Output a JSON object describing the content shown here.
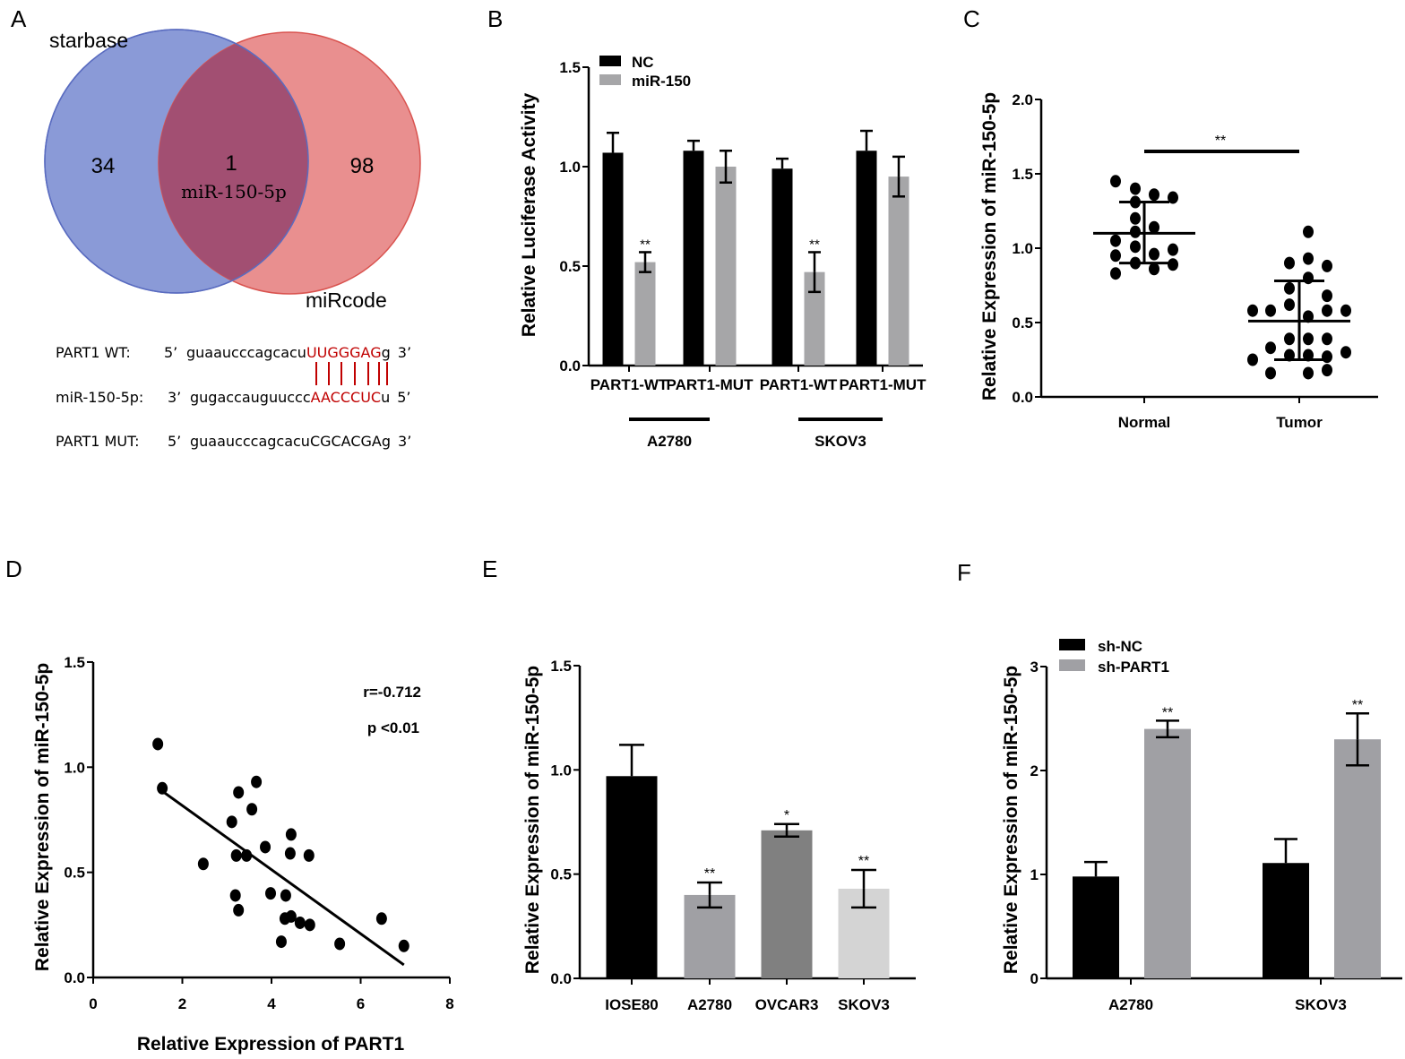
{
  "panels": {
    "A": "A",
    "B": "B",
    "C": "C",
    "D": "D",
    "E": "E",
    "F": "F"
  },
  "venn": {
    "left_label": "starbase",
    "right_label": "miRcode",
    "left_only": "34",
    "overlap": "1",
    "overlap_name": "miR-150-5p",
    "right_only": "98",
    "colors": {
      "left": "#7688d0",
      "right": "#e57b7b",
      "overlap": "#a24f72"
    }
  },
  "sequences": [
    {
      "label": "PART1 WT:",
      "end5": "5’",
      "plain": "guaaucccagcacu",
      "highlight": "UUGGGAG",
      "tail": "g",
      "end3": "3’"
    },
    {
      "label": "miR-150-5p:",
      "end5": "3’",
      "plain": "gugaccauguuccc",
      "highlight": "AACCCUC",
      "tail": "u",
      "end3": "5’"
    },
    {
      "label": "PART1 MUT:",
      "end5": "5’",
      "plain": "guaaucccagcacuCGCACGAg",
      "highlight": "",
      "tail": "",
      "end3": "3’"
    }
  ],
  "chart_data": [
    {
      "id": "B",
      "type": "bar",
      "ylabel": "Relative Luciferase Activity",
      "ylim": [
        0,
        1.5
      ],
      "yticks": [
        "0.0",
        "0.5",
        "1.0",
        "1.5"
      ],
      "categories": [
        "PART1-WT",
        "PART1-MUT",
        "PART1-WT",
        "PART1-MUT"
      ],
      "groups": [
        {
          "label": "A2780",
          "span": [
            0,
            1
          ]
        },
        {
          "label": "SKOV3",
          "span": [
            2,
            3
          ]
        }
      ],
      "series": [
        {
          "name": "NC",
          "color": "#000000",
          "values": [
            1.07,
            1.08,
            0.99,
            1.08
          ],
          "err": [
            0.1,
            0.05,
            0.05,
            0.1
          ]
        },
        {
          "name": "miR-150",
          "color": "#a6a6a8",
          "values": [
            0.52,
            1.0,
            0.47,
            0.95
          ],
          "err": [
            0.05,
            0.08,
            0.1,
            0.1
          ]
        }
      ],
      "annotations": [
        {
          "series": 1,
          "index": 0,
          "text": "**"
        },
        {
          "series": 1,
          "index": 2,
          "text": "**"
        }
      ],
      "legend": "top-left"
    },
    {
      "id": "C",
      "type": "scatter",
      "ylabel": "Relative Expression of miR-150-5p",
      "ylim": [
        0,
        2.0
      ],
      "yticks": [
        "0.0",
        "0.5",
        "1.0",
        "1.5",
        "2.0"
      ],
      "categories": [
        "Normal",
        "Tumor"
      ],
      "points": [
        [
          1.45,
          1.4,
          1.36,
          1.34,
          1.31,
          1.2,
          1.14,
          1.11,
          1.05,
          1.01,
          0.99,
          0.95,
          0.96,
          0.9,
          0.89,
          0.86,
          0.83
        ],
        [
          1.11,
          0.9,
          0.93,
          0.88,
          0.8,
          0.73,
          0.68,
          0.62,
          0.58,
          0.58,
          0.58,
          0.58,
          0.54,
          0.39,
          0.39,
          0.39,
          0.33,
          0.3,
          0.28,
          0.28,
          0.27,
          0.25,
          0.16,
          0.16,
          0.18
        ]
      ],
      "mean": [
        1.1,
        0.51
      ],
      "sd_upper": [
        1.31,
        0.78
      ],
      "sd_lower": [
        0.9,
        0.25
      ],
      "significance": "**"
    },
    {
      "id": "D",
      "type": "scatter",
      "xlabel": "Relative Expression of PART1",
      "ylabel": "Relative Expression of miR-150-5p",
      "xlim": [
        0,
        8
      ],
      "ylim": [
        0,
        1.5
      ],
      "xticks": [
        "0",
        "2",
        "4",
        "6",
        "8"
      ],
      "yticks": [
        "0.0",
        "0.5",
        "1.0",
        "1.5"
      ],
      "x": [
        1.45,
        1.55,
        2.47,
        3.26,
        3.66,
        3.56,
        3.11,
        3.21,
        3.44,
        3.86,
        4.44,
        4.42,
        4.84,
        3.19,
        3.26,
        3.98,
        4.32,
        4.3,
        4.44,
        4.64,
        4.86,
        4.22,
        5.53,
        6.47,
        6.97
      ],
      "y": [
        1.11,
        0.9,
        0.54,
        0.88,
        0.93,
        0.8,
        0.74,
        0.58,
        0.58,
        0.62,
        0.68,
        0.59,
        0.58,
        0.39,
        0.32,
        0.4,
        0.39,
        0.28,
        0.29,
        0.26,
        0.25,
        0.17,
        0.16,
        0.28,
        0.15
      ],
      "fit": {
        "x": [
          1.55,
          6.97
        ],
        "y": [
          0.886,
          0.06
        ]
      },
      "r_text": "r=-0.712",
      "p_text": "p <0.01"
    },
    {
      "id": "E",
      "type": "bar",
      "ylabel": "Relative Expression of miR-150-5p",
      "ylim": [
        0,
        1.5
      ],
      "yticks": [
        "0.0",
        "0.5",
        "1.0",
        "1.5"
      ],
      "categories": [
        "IOSE80",
        "A2780",
        "OVCAR3",
        "SKOV3"
      ],
      "values": [
        0.97,
        0.4,
        0.71,
        0.43
      ],
      "err": [
        0.15,
        0.06,
        0.03,
        0.09
      ],
      "colors": [
        "#000000",
        "#a0a0a4",
        "#808080",
        "#d4d4d4"
      ],
      "annotations": [
        "",
        "**",
        "*",
        "**"
      ]
    },
    {
      "id": "F",
      "type": "bar",
      "ylabel": "Relative Expression of miR-150-5p",
      "ylim": [
        0,
        3
      ],
      "yticks": [
        "0",
        "1",
        "2",
        "3"
      ],
      "categories": [
        "A2780",
        "SKOV3"
      ],
      "series": [
        {
          "name": "sh-NC",
          "color": "#000000",
          "values": [
            0.98,
            1.11
          ],
          "err": [
            0.14,
            0.23
          ]
        },
        {
          "name": "sh-PART1",
          "color": "#a0a0a4",
          "values": [
            2.4,
            2.3
          ],
          "err": [
            0.08,
            0.25
          ]
        }
      ],
      "annotations": [
        {
          "series": 1,
          "index": 0,
          "text": "**"
        },
        {
          "series": 1,
          "index": 1,
          "text": "**"
        }
      ],
      "legend": "top-left"
    }
  ]
}
